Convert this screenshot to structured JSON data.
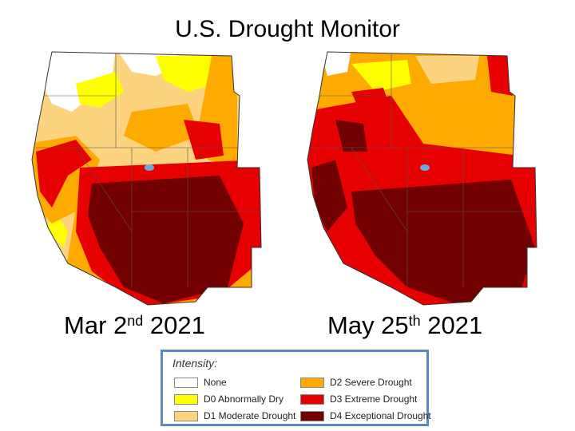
{
  "title": "U.S. Drought Monitor",
  "maps": [
    {
      "date_main": "Mar 2",
      "date_sup": "nd",
      "date_year": " 2021"
    },
    {
      "date_main": "May 25",
      "date_sup": "th",
      "date_year": " 2021"
    }
  ],
  "legend": {
    "title": "Intensity:",
    "items": [
      {
        "label": "None",
        "color": "#ffffff"
      },
      {
        "label": "D0 Abnormally Dry",
        "color": "#ffff00"
      },
      {
        "label": "D1 Moderate Drought",
        "color": "#fcd37f"
      },
      {
        "label": "D2 Severe Drought",
        "color": "#ffaa00"
      },
      {
        "label": "D3 Extreme Drought",
        "color": "#e60000"
      },
      {
        "label": "D4 Exceptional Drought",
        "color": "#730000"
      }
    ]
  }
}
